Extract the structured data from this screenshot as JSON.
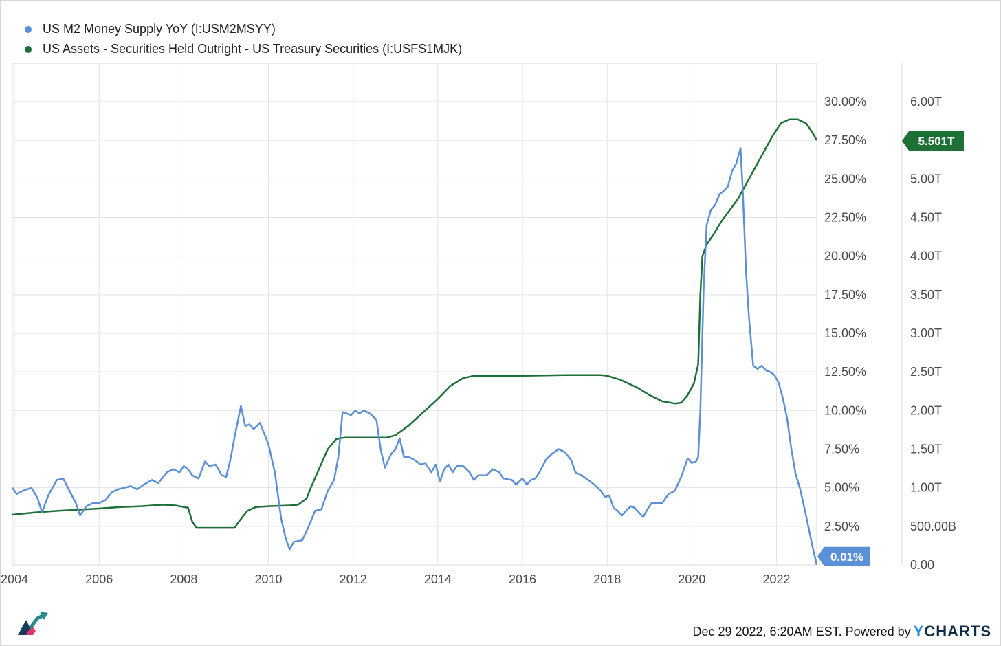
{
  "colors": {
    "m2": "#5b8fd6",
    "treasury": "#1d7036",
    "grid": "#e3e3e3",
    "tick": "#4a4a4a"
  },
  "chart_data": {
    "type": "line",
    "title": "",
    "xlabel": "",
    "grid": true,
    "legend_position": "top-left",
    "x_ticks": [
      "2004",
      "2006",
      "2008",
      "2010",
      "2012",
      "2014",
      "2016",
      "2018",
      "2020",
      "2022"
    ],
    "x_range": [
      2003.95,
      2022.95
    ],
    "y_left": {
      "range": [
        0,
        30
      ],
      "ticks": [
        "2.50%",
        "5.00%",
        "7.50%",
        "10.00%",
        "12.50%",
        "15.00%",
        "17.50%",
        "20.00%",
        "22.50%",
        "25.00%",
        "27.50%",
        "30.00%"
      ]
    },
    "y_right": {
      "range": [
        0,
        6
      ],
      "ticks": [
        "0.00",
        "500.00B",
        "1.00T",
        "1.50T",
        "2.00T",
        "2.50T",
        "3.00T",
        "3.50T",
        "4.00T",
        "4.50T",
        "5.00T",
        "5.50T",
        "6.00T"
      ]
    },
    "series": [
      {
        "name": "US M2 Money Supply YoY (I:USM2MSYY)",
        "axis": "left",
        "unit": "%",
        "last_label": "0.01%",
        "points": [
          [
            2003.95,
            5.0
          ],
          [
            2004.05,
            4.6
          ],
          [
            2004.2,
            4.8
          ],
          [
            2004.4,
            5.0
          ],
          [
            2004.55,
            4.3
          ],
          [
            2004.65,
            3.4
          ],
          [
            2004.8,
            4.5
          ],
          [
            2005.0,
            5.5
          ],
          [
            2005.15,
            5.6
          ],
          [
            2005.3,
            4.8
          ],
          [
            2005.45,
            4.0
          ],
          [
            2005.55,
            3.2
          ],
          [
            2005.7,
            3.8
          ],
          [
            2005.85,
            4.0
          ],
          [
            2006.0,
            4.0
          ],
          [
            2006.15,
            4.2
          ],
          [
            2006.3,
            4.7
          ],
          [
            2006.45,
            4.9
          ],
          [
            2006.6,
            5.0
          ],
          [
            2006.75,
            5.1
          ],
          [
            2006.9,
            4.9
          ],
          [
            2007.05,
            5.2
          ],
          [
            2007.25,
            5.5
          ],
          [
            2007.4,
            5.3
          ],
          [
            2007.6,
            6.0
          ],
          [
            2007.75,
            6.2
          ],
          [
            2007.9,
            6.0
          ],
          [
            2008.0,
            6.4
          ],
          [
            2008.1,
            6.2
          ],
          [
            2008.2,
            5.8
          ],
          [
            2008.35,
            5.6
          ],
          [
            2008.5,
            6.7
          ],
          [
            2008.6,
            6.4
          ],
          [
            2008.75,
            6.5
          ],
          [
            2008.9,
            5.8
          ],
          [
            2009.0,
            5.7
          ],
          [
            2009.1,
            6.8
          ],
          [
            2009.2,
            8.3
          ],
          [
            2009.35,
            10.3
          ],
          [
            2009.45,
            9.0
          ],
          [
            2009.55,
            9.1
          ],
          [
            2009.65,
            8.8
          ],
          [
            2009.8,
            9.2
          ],
          [
            2009.9,
            8.5
          ],
          [
            2010.0,
            7.8
          ],
          [
            2010.15,
            6.0
          ],
          [
            2010.3,
            3.0
          ],
          [
            2010.4,
            1.8
          ],
          [
            2010.5,
            1.0
          ],
          [
            2010.6,
            1.5
          ],
          [
            2010.8,
            1.6
          ],
          [
            2010.95,
            2.5
          ],
          [
            2011.1,
            3.5
          ],
          [
            2011.25,
            3.6
          ],
          [
            2011.4,
            4.8
          ],
          [
            2011.55,
            5.5
          ],
          [
            2011.65,
            7.0
          ],
          [
            2011.75,
            9.9
          ],
          [
            2011.85,
            9.8
          ],
          [
            2011.95,
            9.7
          ],
          [
            2012.05,
            10.0
          ],
          [
            2012.15,
            9.8
          ],
          [
            2012.25,
            10.0
          ],
          [
            2012.4,
            9.8
          ],
          [
            2012.55,
            9.4
          ],
          [
            2012.65,
            7.5
          ],
          [
            2012.75,
            6.3
          ],
          [
            2012.9,
            7.2
          ],
          [
            2013.0,
            7.5
          ],
          [
            2013.1,
            8.2
          ],
          [
            2013.2,
            7.0
          ],
          [
            2013.3,
            7.0
          ],
          [
            2013.45,
            6.8
          ],
          [
            2013.6,
            6.5
          ],
          [
            2013.7,
            6.6
          ],
          [
            2013.85,
            6.0
          ],
          [
            2013.95,
            6.5
          ],
          [
            2014.05,
            5.4
          ],
          [
            2014.15,
            6.2
          ],
          [
            2014.25,
            6.5
          ],
          [
            2014.35,
            6.0
          ],
          [
            2014.45,
            6.4
          ],
          [
            2014.6,
            6.4
          ],
          [
            2014.75,
            6.0
          ],
          [
            2014.85,
            5.5
          ],
          [
            2014.95,
            5.8
          ],
          [
            2015.15,
            5.8
          ],
          [
            2015.3,
            6.2
          ],
          [
            2015.45,
            6.0
          ],
          [
            2015.55,
            5.6
          ],
          [
            2015.75,
            5.5
          ],
          [
            2015.85,
            5.2
          ],
          [
            2016.0,
            5.6
          ],
          [
            2016.1,
            5.2
          ],
          [
            2016.2,
            5.5
          ],
          [
            2016.3,
            5.6
          ],
          [
            2016.4,
            6.0
          ],
          [
            2016.55,
            6.8
          ],
          [
            2016.7,
            7.2
          ],
          [
            2016.85,
            7.5
          ],
          [
            2017.0,
            7.3
          ],
          [
            2017.15,
            6.8
          ],
          [
            2017.25,
            6.0
          ],
          [
            2017.4,
            5.8
          ],
          [
            2017.55,
            5.5
          ],
          [
            2017.7,
            5.2
          ],
          [
            2017.85,
            4.8
          ],
          [
            2017.95,
            4.4
          ],
          [
            2018.05,
            4.5
          ],
          [
            2018.15,
            3.7
          ],
          [
            2018.25,
            3.5
          ],
          [
            2018.35,
            3.2
          ],
          [
            2018.45,
            3.5
          ],
          [
            2018.55,
            3.8
          ],
          [
            2018.65,
            3.7
          ],
          [
            2018.75,
            3.4
          ],
          [
            2018.85,
            3.1
          ],
          [
            2018.95,
            3.6
          ],
          [
            2019.05,
            4.0
          ],
          [
            2019.15,
            4.0
          ],
          [
            2019.3,
            4.0
          ],
          [
            2019.45,
            4.6
          ],
          [
            2019.6,
            4.8
          ],
          [
            2019.75,
            5.7
          ],
          [
            2019.9,
            6.9
          ],
          [
            2020.0,
            6.6
          ],
          [
            2020.1,
            6.7
          ],
          [
            2020.15,
            7.0
          ],
          [
            2020.2,
            10.0
          ],
          [
            2020.28,
            18.0
          ],
          [
            2020.35,
            22.0
          ],
          [
            2020.45,
            23.0
          ],
          [
            2020.55,
            23.3
          ],
          [
            2020.65,
            24.0
          ],
          [
            2020.75,
            24.2
          ],
          [
            2020.85,
            24.5
          ],
          [
            2020.95,
            25.5
          ],
          [
            2021.05,
            26.0
          ],
          [
            2021.15,
            27.0
          ],
          [
            2021.2,
            24.5
          ],
          [
            2021.28,
            19.0
          ],
          [
            2021.35,
            16.0
          ],
          [
            2021.45,
            12.9
          ],
          [
            2021.55,
            12.7
          ],
          [
            2021.65,
            12.9
          ],
          [
            2021.75,
            12.6
          ],
          [
            2021.85,
            12.5
          ],
          [
            2021.95,
            12.3
          ],
          [
            2022.05,
            11.8
          ],
          [
            2022.15,
            10.8
          ],
          [
            2022.25,
            9.5
          ],
          [
            2022.35,
            7.5
          ],
          [
            2022.45,
            5.9
          ],
          [
            2022.55,
            5.0
          ],
          [
            2022.65,
            3.8
          ],
          [
            2022.75,
            2.5
          ],
          [
            2022.85,
            1.2
          ],
          [
            2022.95,
            0.01
          ]
        ]
      },
      {
        "name": "US Assets - Securities Held Outright - US Treasury Securities (I:USFS1MJK)",
        "axis": "right",
        "unit": "USD",
        "last_label": "5.501T",
        "points": [
          [
            2003.95,
            0.65
          ],
          [
            2004.5,
            0.68
          ],
          [
            2005.0,
            0.7
          ],
          [
            2006.0,
            0.73
          ],
          [
            2006.5,
            0.75
          ],
          [
            2007.0,
            0.76
          ],
          [
            2007.5,
            0.78
          ],
          [
            2007.8,
            0.77
          ],
          [
            2008.1,
            0.74
          ],
          [
            2008.2,
            0.56
          ],
          [
            2008.3,
            0.48
          ],
          [
            2008.5,
            0.48
          ],
          [
            2009.0,
            0.48
          ],
          [
            2009.2,
            0.48
          ],
          [
            2009.3,
            0.56
          ],
          [
            2009.5,
            0.7
          ],
          [
            2009.7,
            0.75
          ],
          [
            2010.0,
            0.76
          ],
          [
            2010.5,
            0.77
          ],
          [
            2010.7,
            0.78
          ],
          [
            2010.9,
            0.86
          ],
          [
            2011.0,
            1.0
          ],
          [
            2011.2,
            1.25
          ],
          [
            2011.4,
            1.5
          ],
          [
            2011.6,
            1.63
          ],
          [
            2011.8,
            1.65
          ],
          [
            2012.0,
            1.65
          ],
          [
            2012.5,
            1.65
          ],
          [
            2012.8,
            1.65
          ],
          [
            2013.0,
            1.68
          ],
          [
            2013.3,
            1.8
          ],
          [
            2013.7,
            2.0
          ],
          [
            2014.0,
            2.15
          ],
          [
            2014.3,
            2.32
          ],
          [
            2014.6,
            2.42
          ],
          [
            2014.85,
            2.45
          ],
          [
            2015.0,
            2.45
          ],
          [
            2016.0,
            2.45
          ],
          [
            2017.0,
            2.46
          ],
          [
            2017.85,
            2.46
          ],
          [
            2018.0,
            2.45
          ],
          [
            2018.3,
            2.4
          ],
          [
            2018.7,
            2.3
          ],
          [
            2019.0,
            2.2
          ],
          [
            2019.3,
            2.12
          ],
          [
            2019.6,
            2.09
          ],
          [
            2019.75,
            2.1
          ],
          [
            2019.9,
            2.2
          ],
          [
            2020.05,
            2.35
          ],
          [
            2020.15,
            2.6
          ],
          [
            2020.2,
            3.5
          ],
          [
            2020.25,
            4.0
          ],
          [
            2020.35,
            4.15
          ],
          [
            2020.5,
            4.27
          ],
          [
            2020.7,
            4.45
          ],
          [
            2020.9,
            4.6
          ],
          [
            2021.1,
            4.75
          ],
          [
            2021.3,
            4.95
          ],
          [
            2021.5,
            5.15
          ],
          [
            2021.7,
            5.35
          ],
          [
            2021.9,
            5.55
          ],
          [
            2022.1,
            5.72
          ],
          [
            2022.3,
            5.77
          ],
          [
            2022.5,
            5.77
          ],
          [
            2022.7,
            5.72
          ],
          [
            2022.85,
            5.6
          ],
          [
            2022.95,
            5.501
          ]
        ]
      }
    ]
  },
  "footer": {
    "timestamp": "Dec 29 2022, 6:20AM EST. Powered by",
    "brand_y": "Y",
    "brand_rest": "CHARTS"
  }
}
